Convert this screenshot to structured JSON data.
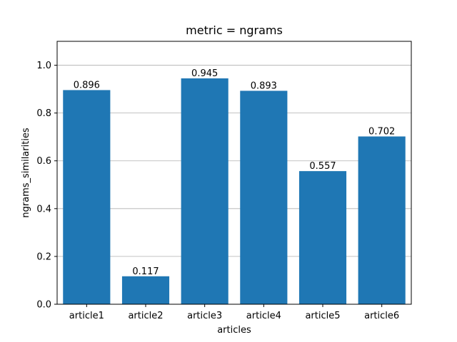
{
  "chart_data": {
    "type": "bar",
    "title": "metric = ngrams",
    "xlabel": "articles",
    "ylabel": "ngrams_similarities",
    "categories": [
      "article1",
      "article2",
      "article3",
      "article4",
      "article5",
      "article6"
    ],
    "values": [
      0.896,
      0.117,
      0.945,
      0.893,
      0.557,
      0.702
    ],
    "data_labels": [
      "0.896",
      "0.117",
      "0.945",
      "0.893",
      "0.557",
      "0.702"
    ],
    "ylim": [
      0,
      1.1
    ],
    "yticks": [
      0.0,
      0.2,
      0.4,
      0.6,
      0.8,
      1.0
    ],
    "ytick_labels": [
      "0.0",
      "0.2",
      "0.4",
      "0.6",
      "0.8",
      "1.0"
    ],
    "grid": "y-axis",
    "bar_color": "#1f77b4",
    "grid_color": "#b0b0b0"
  }
}
